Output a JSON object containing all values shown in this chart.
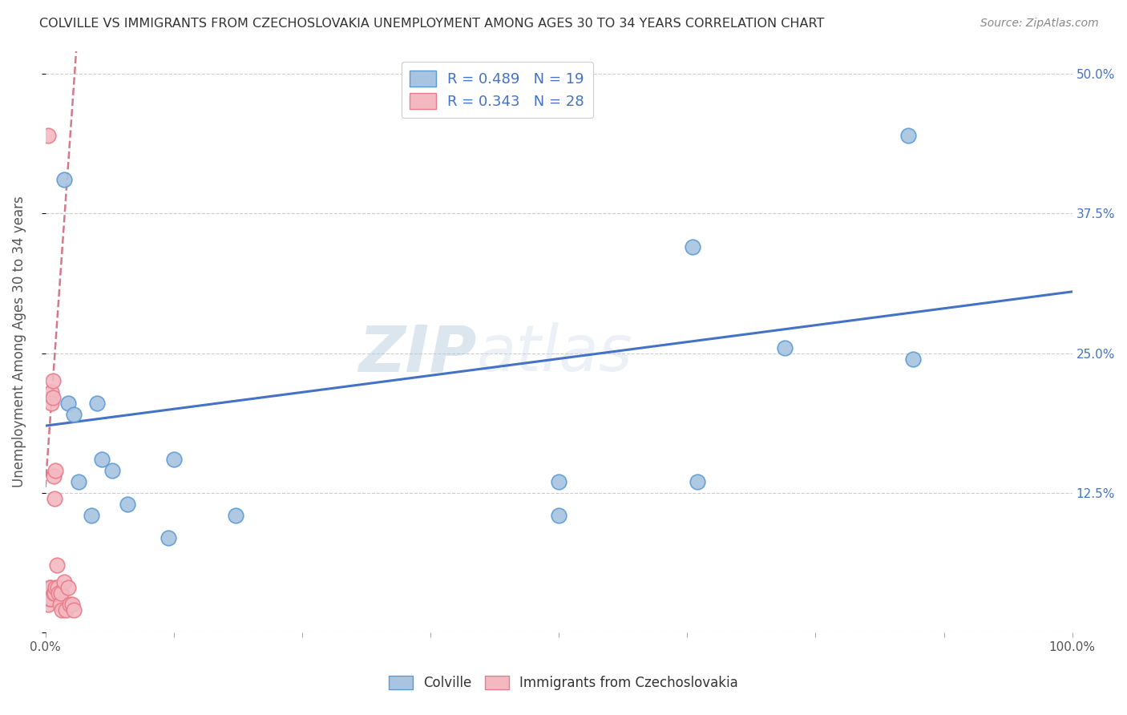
{
  "title": "COLVILLE VS IMMIGRANTS FROM CZECHOSLOVAKIA UNEMPLOYMENT AMONG AGES 30 TO 34 YEARS CORRELATION CHART",
  "source": "Source: ZipAtlas.com",
  "ylabel": "Unemployment Among Ages 30 to 34 years",
  "xlim": [
    0,
    1.0
  ],
  "ylim": [
    0,
    0.52
  ],
  "xticks": [
    0.0,
    0.125,
    0.25,
    0.375,
    0.5,
    0.625,
    0.75,
    0.875,
    1.0
  ],
  "yticks": [
    0.0,
    0.125,
    0.25,
    0.375,
    0.5
  ],
  "yticklabels": [
    "",
    "12.5%",
    "25.0%",
    "37.5%",
    "50.0%"
  ],
  "colville_color": "#a8c4e0",
  "colville_edge": "#5b9bd5",
  "czech_color": "#f4b8c1",
  "czech_edge": "#e87c8a",
  "blue_line_color": "#4472c4",
  "pink_line_color": "#d4788a",
  "R_colville": 0.489,
  "N_colville": 19,
  "R_czech": 0.343,
  "N_czech": 28,
  "colville_x": [
    0.018,
    0.022,
    0.028,
    0.032,
    0.045,
    0.05,
    0.055,
    0.065,
    0.08,
    0.12,
    0.125,
    0.185,
    0.5,
    0.5,
    0.63,
    0.635,
    0.72,
    0.84,
    0.845
  ],
  "colville_y": [
    0.405,
    0.205,
    0.195,
    0.135,
    0.105,
    0.205,
    0.155,
    0.145,
    0.115,
    0.085,
    0.155,
    0.105,
    0.135,
    0.105,
    0.345,
    0.135,
    0.255,
    0.445,
    0.245
  ],
  "czech_x": [
    0.003,
    0.003,
    0.004,
    0.004,
    0.005,
    0.005,
    0.006,
    0.006,
    0.007,
    0.007,
    0.008,
    0.008,
    0.009,
    0.009,
    0.01,
    0.01,
    0.011,
    0.012,
    0.013,
    0.014,
    0.015,
    0.016,
    0.018,
    0.02,
    0.022,
    0.024,
    0.026,
    0.028
  ],
  "czech_y": [
    0.445,
    0.025,
    0.04,
    0.03,
    0.04,
    0.03,
    0.215,
    0.205,
    0.225,
    0.21,
    0.14,
    0.035,
    0.12,
    0.035,
    0.145,
    0.04,
    0.06,
    0.04,
    0.035,
    0.025,
    0.035,
    0.02,
    0.045,
    0.02,
    0.04,
    0.025,
    0.025,
    0.02
  ],
  "blue_trendline_x0": 0.0,
  "blue_trendline_y0": 0.185,
  "blue_trendline_x1": 1.0,
  "blue_trendline_y1": 0.305,
  "pink_trendline_x0": 0.0,
  "pink_trendline_y0": 0.13,
  "pink_trendline_x1": 0.03,
  "pink_trendline_y1": 0.52,
  "watermark_line1": "ZIP",
  "watermark_line2": "atlas",
  "background_color": "#ffffff",
  "grid_color": "#cccccc",
  "title_color": "#333333",
  "axis_label_color": "#555555"
}
